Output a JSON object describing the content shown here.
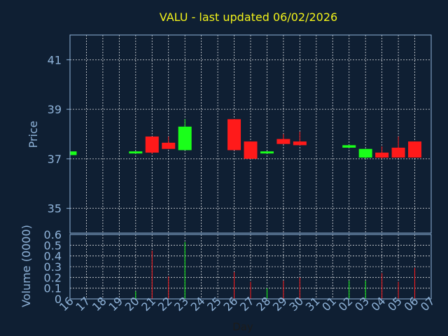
{
  "chart_data": [
    {
      "type": "candlestick",
      "title": "VALU - last updated 06/02/2026",
      "ylabel": "Price",
      "ylim": [
        34,
        42
      ],
      "yticks": [
        35,
        37,
        39,
        41
      ],
      "grid": true,
      "colors": {
        "up": "#1aff1a",
        "down": "#ff1a1a",
        "background": "#0f1f33",
        "title": "#f2f21a",
        "axis": "#8fb3d9"
      },
      "days": [
        "16",
        "17",
        "18",
        "19",
        "20",
        "21",
        "22",
        "23",
        "24",
        "25",
        "26",
        "27",
        "28",
        "29",
        "30",
        "31",
        "01",
        "02",
        "03",
        "04",
        "05",
        "06",
        "07"
      ],
      "candles": [
        {
          "day": "16",
          "open": 37.15,
          "close": 37.3,
          "high": 37.3,
          "low": 37.15
        },
        {
          "day": "20",
          "open": 37.25,
          "close": 37.3,
          "high": 37.3,
          "low": 37.25
        },
        {
          "day": "21",
          "open": 37.9,
          "close": 37.25,
          "high": 37.9,
          "low": 37.2
        },
        {
          "day": "22",
          "open": 37.65,
          "close": 37.4,
          "high": 37.9,
          "low": 37.4
        },
        {
          "day": "23",
          "open": 37.35,
          "close": 38.3,
          "high": 38.6,
          "low": 37.35
        },
        {
          "day": "26",
          "open": 38.6,
          "close": 37.35,
          "high": 38.6,
          "low": 37.35
        },
        {
          "day": "27",
          "open": 37.7,
          "close": 37.0,
          "high": 37.7,
          "low": 37.0
        },
        {
          "day": "28",
          "open": 37.25,
          "close": 37.3,
          "high": 37.3,
          "low": 37.25
        },
        {
          "day": "29",
          "open": 37.8,
          "close": 37.6,
          "high": 38.0,
          "low": 37.6
        },
        {
          "day": "30",
          "open": 37.7,
          "close": 37.55,
          "high": 38.1,
          "low": 37.55
        },
        {
          "day": "02",
          "open": 37.45,
          "close": 37.55,
          "high": 37.55,
          "low": 37.45
        },
        {
          "day": "03",
          "open": 37.05,
          "close": 37.4,
          "high": 37.4,
          "low": 37.0
        },
        {
          "day": "04",
          "open": 37.25,
          "close": 37.05,
          "high": 37.5,
          "low": 37.0
        },
        {
          "day": "05",
          "open": 37.45,
          "close": 37.05,
          "high": 37.9,
          "low": 37.05
        },
        {
          "day": "06",
          "open": 37.7,
          "close": 37.05,
          "high": 37.7,
          "low": 37.05
        }
      ]
    },
    {
      "type": "bar",
      "ylabel": "Volume (0000)",
      "xlabel": "Day",
      "ylim": [
        0,
        0.6
      ],
      "yticks": [
        "0",
        "0.1",
        "0.2",
        "0.3",
        "0.4",
        "0.5",
        "0.6"
      ],
      "grid": true,
      "bars": [
        {
          "day": "20",
          "value": 0.07,
          "direction": "up"
        },
        {
          "day": "21",
          "value": 0.45,
          "direction": "down"
        },
        {
          "day": "22",
          "value": 0.21,
          "direction": "down"
        },
        {
          "day": "23",
          "value": 0.53,
          "direction": "up"
        },
        {
          "day": "26",
          "value": 0.25,
          "direction": "down"
        },
        {
          "day": "27",
          "value": 0.16,
          "direction": "down"
        },
        {
          "day": "28",
          "value": 0.1,
          "direction": "up"
        },
        {
          "day": "29",
          "value": 0.17,
          "direction": "down"
        },
        {
          "day": "30",
          "value": 0.2,
          "direction": "down"
        },
        {
          "day": "02",
          "value": 0.17,
          "direction": "up"
        },
        {
          "day": "03",
          "value": 0.17,
          "direction": "up"
        },
        {
          "day": "04",
          "value": 0.24,
          "direction": "down"
        },
        {
          "day": "05",
          "value": 0.16,
          "direction": "down"
        },
        {
          "day": "06",
          "value": 0.29,
          "direction": "down"
        }
      ]
    }
  ]
}
